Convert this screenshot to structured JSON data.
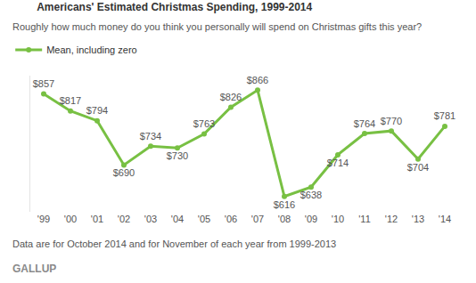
{
  "chart_data": {
    "type": "line",
    "title": "Americans' Estimated Christmas Spending, 1999-2014",
    "subtitle": "Roughly how much money do you think you personally will spend on Christmas gifts this year?",
    "categories": [
      "'99",
      "'00",
      "'01",
      "'02",
      "'03",
      "'04",
      "'05",
      "'06",
      "'07",
      "'08",
      "'09",
      "'10",
      "'11",
      "'12",
      "'13",
      "'14"
    ],
    "series": [
      {
        "name": "Mean, including zero",
        "color": "#78c043",
        "marker": "circle",
        "values": [
          857,
          817,
          794,
          690,
          734,
          730,
          763,
          826,
          866,
          616,
          638,
          714,
          764,
          770,
          704,
          781
        ],
        "value_labels": [
          "$857",
          "$817",
          "$794",
          "$690",
          "$734",
          "$730",
          "$763",
          "$826",
          "$866",
          "$616",
          "$638",
          "$714",
          "$764",
          "$770",
          "$704",
          "$781"
        ]
      }
    ],
    "ylim": [
      580,
      900
    ],
    "yticks": [],
    "grid": false,
    "data_labels": true,
    "tick_labels": "x",
    "legend": "top-left",
    "note": "Data are for October 2014 and for November of each year from 1999-2013",
    "source": "GALLUP"
  }
}
